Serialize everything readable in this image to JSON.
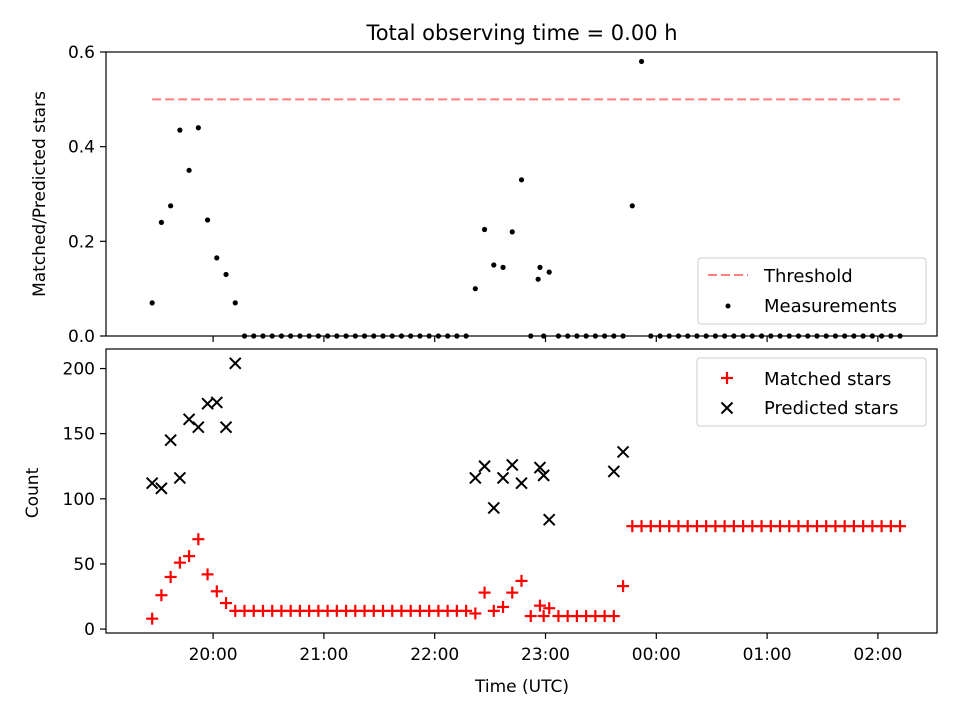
{
  "title": "Total observing time = 0.00 h",
  "chart_data": [
    {
      "type": "scatter",
      "ylabel": "Matched/Predicted stars",
      "ylim": [
        0,
        0.6
      ],
      "yticks": [
        0,
        0.2,
        0.4,
        0.6
      ],
      "ytick_labels": [
        "0.0",
        "0.2",
        "0.4",
        "0.6"
      ],
      "grid": false,
      "legend_position": "lower-right",
      "threshold": {
        "name": "Threshold",
        "value": 0.5,
        "x_start": "19:27",
        "x_end": "02:12",
        "color": "#ff7f7f"
      },
      "measurements": {
        "name": "Measurements",
        "color": "#000000",
        "x": [
          "19:27",
          "19:32",
          "19:37",
          "19:42",
          "19:47",
          "19:52",
          "19:57",
          "20:02",
          "20:07",
          "20:12",
          "20:17",
          "20:22",
          "20:27",
          "20:32",
          "20:37",
          "20:42",
          "20:47",
          "20:52",
          "20:57",
          "21:02",
          "21:07",
          "21:12",
          "21:17",
          "21:22",
          "21:27",
          "21:32",
          "21:37",
          "21:42",
          "21:47",
          "21:52",
          "21:57",
          "22:02",
          "22:07",
          "22:12",
          "22:17",
          "22:22",
          "22:27",
          "22:32",
          "22:37",
          "22:42",
          "22:47",
          "22:52",
          "22:57",
          "23:02",
          "23:07",
          "23:12",
          "23:17",
          "23:22",
          "23:27",
          "23:32",
          "23:37",
          "23:42",
          "23:47",
          "23:52",
          "23:57",
          "00:02",
          "00:07",
          "00:12",
          "00:17",
          "00:22",
          "00:27",
          "00:32",
          "00:37",
          "00:42",
          "00:47",
          "00:52",
          "00:57",
          "01:02",
          "01:07",
          "01:12",
          "01:17",
          "01:22",
          "01:27",
          "01:32",
          "01:37",
          "01:42",
          "01:47",
          "01:52",
          "01:57",
          "02:02",
          "02:07",
          "02:12",
          "22:56",
          "22:59"
        ],
        "y": [
          0.07,
          0.24,
          0.275,
          0.435,
          0.35,
          0.44,
          0.245,
          0.165,
          0.13,
          0.07,
          0,
          0,
          0,
          0,
          0,
          0,
          0,
          0,
          0,
          0,
          0,
          0,
          0,
          0,
          0,
          0,
          0,
          0,
          0,
          0,
          0,
          0,
          0,
          0,
          0,
          0.1,
          0.225,
          0.15,
          0.145,
          0.22,
          0.33,
          0,
          0.145,
          0.135,
          0,
          0,
          0,
          0,
          0,
          0,
          0,
          0,
          0.275,
          0.58,
          0,
          0,
          0,
          0,
          0,
          0,
          0,
          0,
          0,
          0,
          0,
          0,
          0,
          0,
          0,
          0,
          0,
          0,
          0,
          0,
          0,
          0,
          0,
          0,
          0,
          0,
          0,
          0,
          0.12,
          0
        ]
      }
    },
    {
      "type": "scatter",
      "xlabel": "Time (UTC)",
      "ylabel": "Count",
      "ylim": [
        -3,
        215
      ],
      "yticks": [
        0,
        50,
        100,
        150,
        200
      ],
      "ytick_labels": [
        "0",
        "50",
        "100",
        "150",
        "200"
      ],
      "xticks": [
        "20:00",
        "21:00",
        "22:00",
        "23:00",
        "00:00",
        "01:00",
        "02:00"
      ],
      "xlim": [
        "19:02",
        "02:32"
      ],
      "grid": false,
      "legend_position": "upper-right",
      "series": [
        {
          "name": "Matched stars",
          "marker": "plus",
          "color": "#ff0000",
          "x": [
            "19:27",
            "19:32",
            "19:37",
            "19:42",
            "19:47",
            "19:52",
            "19:57",
            "20:02",
            "20:07",
            "20:12",
            "20:17",
            "20:22",
            "20:27",
            "20:32",
            "20:37",
            "20:42",
            "20:47",
            "20:52",
            "20:57",
            "21:02",
            "21:07",
            "21:12",
            "21:17",
            "21:22",
            "21:27",
            "21:32",
            "21:37",
            "21:42",
            "21:47",
            "21:52",
            "21:57",
            "22:02",
            "22:07",
            "22:12",
            "22:17",
            "22:22",
            "22:27",
            "22:32",
            "22:37",
            "22:42",
            "22:47",
            "22:52",
            "22:57",
            "23:02",
            "23:07",
            "23:12",
            "23:17",
            "23:22",
            "23:27",
            "23:32",
            "23:37",
            "23:42",
            "23:47",
            "23:52",
            "23:57",
            "00:02",
            "00:07",
            "00:12",
            "00:17",
            "00:22",
            "00:27",
            "00:32",
            "00:37",
            "00:42",
            "00:47",
            "00:52",
            "00:57",
            "01:02",
            "01:07",
            "01:12",
            "01:17",
            "01:22",
            "01:27",
            "01:32",
            "01:37",
            "01:42",
            "01:47",
            "01:52",
            "01:57",
            "02:02",
            "02:07",
            "02:12",
            "22:59"
          ],
          "y": [
            8,
            26,
            40,
            51,
            56,
            69,
            42,
            29,
            20,
            14,
            14,
            14,
            14,
            14,
            14,
            14,
            14,
            14,
            14,
            14,
            14,
            14,
            14,
            14,
            14,
            14,
            14,
            14,
            14,
            14,
            14,
            14,
            14,
            14,
            14,
            12,
            28,
            14,
            17,
            28,
            37,
            10,
            18,
            16,
            10,
            10,
            10,
            10,
            10,
            10,
            10,
            33,
            79,
            79,
            79,
            79,
            79,
            79,
            79,
            79,
            79,
            79,
            79,
            79,
            79,
            79,
            79,
            79,
            79,
            79,
            79,
            79,
            79,
            79,
            79,
            79,
            79,
            79,
            79,
            79,
            79,
            79,
            10
          ]
        },
        {
          "name": "Predicted stars",
          "marker": "x",
          "color": "#000000",
          "x": [
            "19:27",
            "19:32",
            "19:37",
            "19:42",
            "19:47",
            "19:52",
            "19:57",
            "20:02",
            "20:07",
            "20:12",
            "22:22",
            "22:27",
            "22:32",
            "22:37",
            "22:42",
            "22:47",
            "22:57",
            "22:59",
            "23:02",
            "23:37",
            "23:42"
          ],
          "y": [
            112,
            108,
            145,
            116,
            161,
            155,
            173,
            174,
            155,
            204,
            116,
            125,
            93,
            116,
            126,
            112,
            124,
            118,
            84,
            121,
            136
          ]
        }
      ]
    }
  ]
}
